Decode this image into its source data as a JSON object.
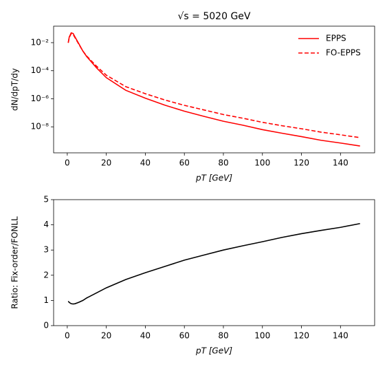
{
  "chart_data": [
    {
      "type": "line",
      "title": "√s = 5020 GeV",
      "x_label": "pT [GeV]",
      "y_label": "dN/dpT/dy",
      "log_y": true,
      "legend": "upper right",
      "x": [
        0.5,
        1,
        2,
        3,
        4,
        6,
        8,
        10,
        15,
        20,
        30,
        40,
        50,
        60,
        70,
        80,
        90,
        100,
        110,
        120,
        130,
        140,
        150
      ],
      "series": [
        {
          "name": "EPPS",
          "color": "#ff0000",
          "style": "solid",
          "values": [
            0.01,
            0.025,
            0.05,
            0.045,
            0.025,
            0.008,
            0.0025,
            0.001,
            0.00016,
            3.2e-05,
            4e-06,
            1.1e-06,
            3.5e-07,
            1.3e-07,
            5.6e-08,
            2.5e-08,
            1.3e-08,
            6.3e-09,
            3.5e-09,
            2e-09,
            1.1e-09,
            7e-10,
            4.3e-10
          ]
        },
        {
          "name": "FO-EPPS",
          "color": "#ff0000",
          "style": "dashed",
          "values": [
            0.0097,
            0.023,
            0.0435,
            0.039,
            0.022,
            0.0074,
            0.0025,
            0.0011,
            0.00021,
            4.8e-05,
            7.3e-06,
            2.3e-06,
            8.2e-07,
            3.4e-07,
            1.6e-07,
            7.5e-08,
            4.1e-08,
            2.1e-08,
            1.2e-08,
            7.3e-09,
            4.2e-09,
            2.7e-09,
            1.7e-09
          ]
        }
      ],
      "xlim": [
        -7,
        157.5
      ],
      "xticks": [
        0,
        20,
        40,
        60,
        80,
        100,
        120,
        140
      ],
      "ylim": [
        1.4e-10,
        0.15
      ],
      "yticks": [
        {
          "value": 1e-08,
          "label": "10⁻⁸"
        },
        {
          "value": 1e-06,
          "label": "10⁻⁶"
        },
        {
          "value": 0.0001,
          "label": "10⁻⁴"
        },
        {
          "value": 0.01,
          "label": "10⁻²"
        }
      ]
    },
    {
      "type": "line",
      "x_label": "pT [GeV]",
      "y_label": "Ratio: Fix-order/FONLL",
      "color": "#000000",
      "x": [
        0.5,
        1,
        2,
        3,
        4,
        6,
        8,
        10,
        15,
        20,
        30,
        40,
        50,
        60,
        70,
        80,
        90,
        100,
        110,
        120,
        130,
        140,
        150
      ],
      "values": [
        0.97,
        0.92,
        0.87,
        0.86,
        0.87,
        0.93,
        1.0,
        1.1,
        1.3,
        1.5,
        1.83,
        2.1,
        2.35,
        2.6,
        2.8,
        3.0,
        3.17,
        3.33,
        3.5,
        3.65,
        3.78,
        3.9,
        4.05
      ],
      "xlim": [
        -7,
        157.5
      ],
      "xticks": [
        0,
        20,
        40,
        60,
        80,
        100,
        120,
        140
      ],
      "ylim": [
        0,
        5
      ],
      "yticks": [
        0,
        1,
        2,
        3,
        4,
        5
      ]
    }
  ]
}
